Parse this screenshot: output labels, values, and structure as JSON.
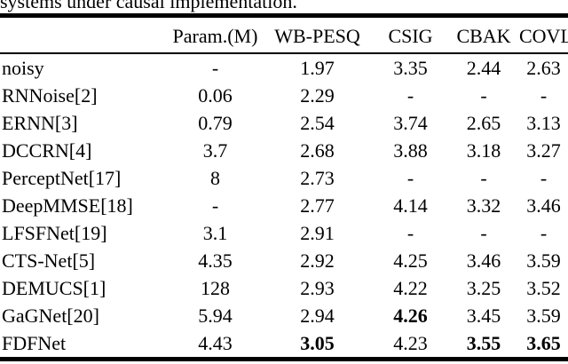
{
  "caption_fragment": "systems under causal implementation.",
  "table": {
    "columns": [
      "",
      "Param.(M)",
      "WB-PESQ",
      "CSIG",
      "CBAK",
      "COVL"
    ],
    "rows": [
      {
        "model": "noisy",
        "values": [
          "-",
          "1.97",
          "3.35",
          "2.44",
          "2.63"
        ],
        "bold": []
      },
      {
        "model": "RNNoise[2]",
        "values": [
          "0.06",
          "2.29",
          "-",
          "-",
          "-"
        ],
        "bold": []
      },
      {
        "model": "ERNN[3]",
        "values": [
          "0.79",
          "2.54",
          "3.74",
          "2.65",
          "3.13"
        ],
        "bold": []
      },
      {
        "model": "DCCRN[4]",
        "values": [
          "3.7",
          "2.68",
          "3.88",
          "3.18",
          "3.27"
        ],
        "bold": []
      },
      {
        "model": "PerceptNet[17]",
        "values": [
          "8",
          "2.73",
          "-",
          "-",
          "-"
        ],
        "bold": []
      },
      {
        "model": "DeepMMSE[18]",
        "values": [
          "-",
          "2.77",
          "4.14",
          "3.32",
          "3.46"
        ],
        "bold": []
      },
      {
        "model": "LFSFNet[19]",
        "values": [
          "3.1",
          "2.91",
          "-",
          "-",
          "-"
        ],
        "bold": []
      },
      {
        "model": "CTS-Net[5]",
        "values": [
          "4.35",
          "2.92",
          "4.25",
          "3.46",
          "3.59"
        ],
        "bold": []
      },
      {
        "model": "DEMUCS[1]",
        "values": [
          "128",
          "2.93",
          "4.22",
          "3.25",
          "3.52"
        ],
        "bold": []
      },
      {
        "model": "GaGNet[20]",
        "values": [
          "5.94",
          "2.94",
          "4.26",
          "3.45",
          "3.59"
        ],
        "bold": [
          2
        ]
      },
      {
        "model": "FDFNet",
        "values": [
          "4.43",
          "3.05",
          "4.23",
          "3.55",
          "3.65"
        ],
        "bold": [
          1,
          3,
          4
        ]
      }
    ]
  },
  "colors": {
    "text": "#000000",
    "background": "#ffffff",
    "rule": "#000000"
  }
}
